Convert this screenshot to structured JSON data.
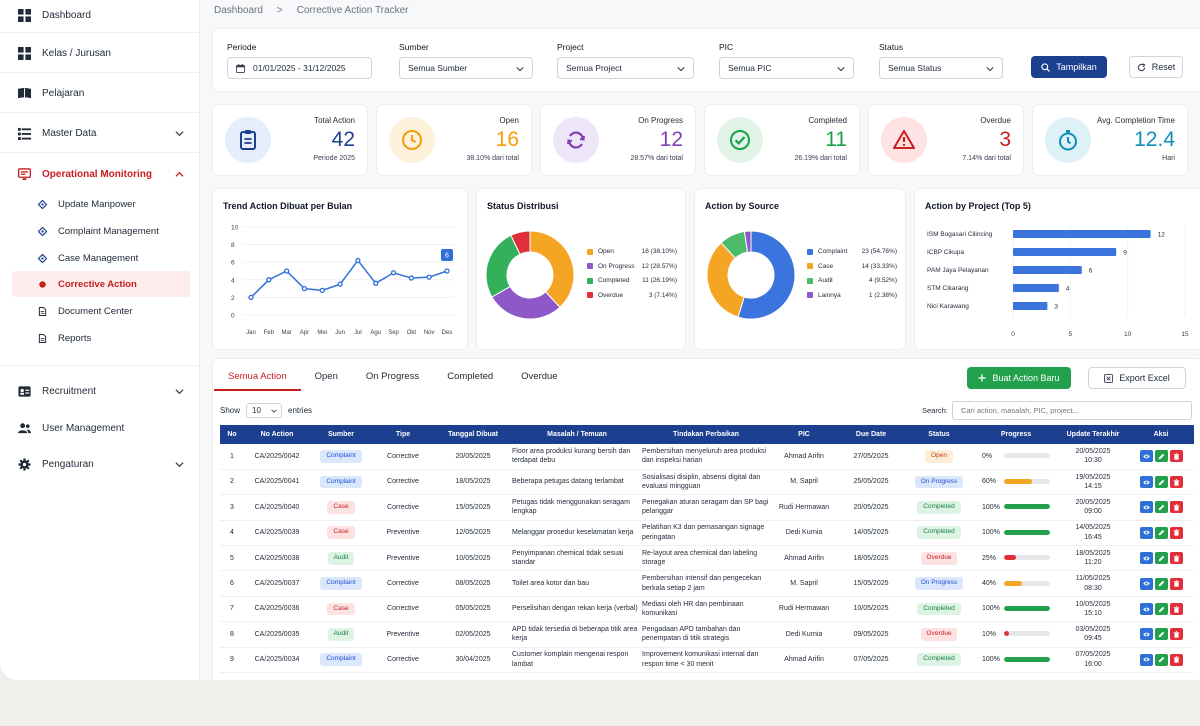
{
  "sidebar": {
    "items": [
      {
        "label": "Dashboard",
        "icon": "grid-icon"
      },
      {
        "label": "Kelas / Jurusan",
        "icon": "grid-icon"
      },
      {
        "label": "Pelajaran",
        "icon": "book-icon"
      },
      {
        "label": "Master Data",
        "icon": "list-icon"
      },
      {
        "label": "Operational Monitoring",
        "icon": "monitor-icon"
      },
      {
        "label": "Recruitment",
        "icon": "id-card-icon"
      },
      {
        "label": "User Management",
        "icon": "users-icon"
      },
      {
        "label": "Pengaturan",
        "icon": "gear-icon"
      }
    ],
    "sub_items": [
      {
        "label": "Update Manpower",
        "icon": "diamond-icon"
      },
      {
        "label": "Complaint Management",
        "icon": "diamond-icon"
      },
      {
        "label": "Case Management",
        "icon": "diamond-icon"
      },
      {
        "label": "Corrective Action",
        "icon": "dot-icon"
      },
      {
        "label": "Document Center",
        "icon": "file-icon"
      },
      {
        "label": "Reports",
        "icon": "file-icon"
      }
    ]
  },
  "breadcrumb": {
    "home": "Dashboard",
    "sep": ">",
    "current": "Corrective Action Tracker"
  },
  "filters": {
    "periode_label": "Periode",
    "periode_value": "01/01/2025 - 31/12/2025",
    "sumber_label": "Sumber",
    "sumber_value": "Semua Sumber",
    "project_label": "Project",
    "project_value": "Semua Project",
    "pic_label": "PIC",
    "pic_value": "Semua PIC",
    "status_label": "Status",
    "status_value": "Semua Status",
    "tampilkan": "Tampilkan",
    "reset": "Reset"
  },
  "stats": [
    {
      "title": "Total Action",
      "value": "42",
      "sub": "Periode 2025",
      "color": "#1d3f8f",
      "bg": "#e6eefb",
      "icon": "clipboard-icon"
    },
    {
      "title": "Open",
      "value": "16",
      "sub": "38.10% dari total",
      "color": "#f59e0b",
      "bg": "#fdf1dc",
      "icon": "clock-icon"
    },
    {
      "title": "On Progress",
      "value": "12",
      "sub": "28.57% dari total",
      "color": "#7e3fb3",
      "bg": "#efe5f8",
      "icon": "refresh-icon"
    },
    {
      "title": "Completed",
      "value": "11",
      "sub": "26.19% dari total",
      "color": "#16a34a",
      "bg": "#e1f4e7",
      "icon": "check-circle-icon"
    },
    {
      "title": "Overdue",
      "value": "3",
      "sub": "7.14% dari total",
      "color": "#c81e1e",
      "bg": "#fde3e3",
      "icon": "warning-icon"
    },
    {
      "title": "Avg. Completion Time",
      "value": "12.4",
      "sub": "Hari",
      "color": "#0e8fb8",
      "bg": "#ddf1f7",
      "icon": "stopwatch-icon"
    }
  ],
  "chart_data": [
    {
      "type": "line",
      "title": "Trend Action Dibuat per Bulan",
      "categories": [
        "Jan",
        "Feb",
        "Mar",
        "Apr",
        "Mei",
        "Jun",
        "Jul",
        "Agu",
        "Sep",
        "Okt",
        "Nov",
        "Des"
      ],
      "values": [
        2,
        4,
        5,
        3,
        2.8,
        3.5,
        6.2,
        3.6,
        4.8,
        4.2,
        4.3,
        5
      ],
      "ylim": [
        0,
        10
      ],
      "yticks": [
        "0",
        "2",
        "4",
        "6",
        "8",
        "10"
      ],
      "annotation": "6",
      "color": "#2f6fd6"
    },
    {
      "type": "pie",
      "title": "Status Distribusi",
      "labels": [
        "Open",
        "On Progress",
        "Completed",
        "Overdue"
      ],
      "values": [
        16,
        12,
        11,
        3
      ],
      "display": [
        "16 (38.10%)",
        "12 (28.57%)",
        "11 (26.19%)",
        "3 (7.14%)"
      ],
      "colors": [
        "#f5a524",
        "#8e58c9",
        "#34b05a",
        "#e02f3b"
      ]
    },
    {
      "type": "pie",
      "title": "Action by Source",
      "labels": [
        "Complaint",
        "Case",
        "Audit",
        "Lainnya"
      ],
      "values": [
        23,
        14,
        4,
        1
      ],
      "display": [
        "23 (54.76%)",
        "14 (33.33%)",
        "4 (9.52%)",
        "1 (2.38%)"
      ],
      "colors": [
        "#3b74dc",
        "#f5a524",
        "#4dbb6a",
        "#8e58c9"
      ]
    },
    {
      "type": "bar",
      "title": "Action by Project (Top 5)",
      "categories": [
        "ISM Bogasari Cilincing",
        "ICBP Cikupa",
        "PAM Jaya Pelayanan",
        "STM Cikarang",
        "Nici Karawang"
      ],
      "values": [
        12,
        9,
        6,
        4,
        3
      ],
      "xticks": [
        "0",
        "5",
        "10",
        "15"
      ],
      "xlim": [
        0,
        15
      ],
      "color": "#3b74dc"
    }
  ],
  "tabs": [
    {
      "label": "Semua Action"
    },
    {
      "label": "Open"
    },
    {
      "label": "On Progress"
    },
    {
      "label": "Completed"
    },
    {
      "label": "Overdue"
    }
  ],
  "actions": {
    "new": "Buat Action Baru",
    "export": "Export Excel"
  },
  "table_controls": {
    "show": "Show",
    "entries_value": "10",
    "entries": "entries",
    "search_label": "Search:",
    "search_placeholder": "Cari action, masalah, PIC, project..."
  },
  "table": {
    "headers": [
      "No",
      "No Action",
      "Sumber",
      "Tipe",
      "Tanggal Dibuat",
      "Masalah / Temuan",
      "Tindakan Perbaikan",
      "PIC",
      "Due Date",
      "Status",
      "Progress",
      "Update Terakhir",
      "Aksi"
    ],
    "rows": [
      {
        "no": "1",
        "code": "CA/2025/0042",
        "sumber": "Complaint",
        "tipe": "Corrective",
        "tanggal": "20/05/2025",
        "masalah": "Floor area produksi kurang bersih dan terdapat debu",
        "tindakan": "Pembersihan menyeluruh area produksi dan inspeksi harian",
        "pic": "Ahmad Arifin",
        "due": "27/05/2025",
        "status": "Open",
        "progress": "0%",
        "progress_value": 0,
        "update_date": "20/05/2025",
        "update_time": "10:30"
      },
      {
        "no": "2",
        "code": "CA/2025/0041",
        "sumber": "Complaint",
        "tipe": "Corrective",
        "tanggal": "18/05/2025",
        "masalah": "Beberapa petugas datang terlambat",
        "tindakan": "Sosialisasi disiplin, absensi digital dan evaluasi mingguan",
        "pic": "M. Sapril",
        "due": "25/05/2025",
        "status": "On Progress",
        "progress": "60%",
        "progress_value": 60,
        "update_date": "19/05/2025",
        "update_time": "14:15"
      },
      {
        "no": "3",
        "code": "CA/2025/0040",
        "sumber": "Case",
        "tipe": "Corrective",
        "tanggal": "15/05/2025",
        "masalah": "Petugas tidak menggunakan seragam lengkap",
        "tindakan": "Penegakan aturan seragam dan SP bagi pelanggar",
        "pic": "Rudi Hermawan",
        "due": "20/05/2025",
        "status": "Completed",
        "progress": "100%",
        "progress_value": 100,
        "update_date": "20/05/2025",
        "update_time": "09:00"
      },
      {
        "no": "4",
        "code": "CA/2025/0039",
        "sumber": "Case",
        "tipe": "Preventive",
        "tanggal": "12/05/2025",
        "masalah": "Melanggar prosedur keselamatan kerja",
        "tindakan": "Pelatihan K3 dan pemasangan signage peringatan",
        "pic": "Dedi Kurnia",
        "due": "14/05/2025",
        "status": "Completed",
        "progress": "100%",
        "progress_value": 100,
        "update_date": "14/05/2025",
        "update_time": "16:45"
      },
      {
        "no": "5",
        "code": "CA/2025/0038",
        "sumber": "Audit",
        "tipe": "Preventive",
        "tanggal": "10/05/2025",
        "masalah": "Penyimpanan chemical tidak sesuai standar",
        "tindakan": "Re-layout area chemical dan labeling storage",
        "pic": "Ahmad Arifin",
        "due": "18/05/2025",
        "status": "Overdue",
        "progress": "25%",
        "progress_value": 25,
        "update_date": "18/05/2025",
        "update_time": "11:20"
      },
      {
        "no": "6",
        "code": "CA/2025/0037",
        "sumber": "Complaint",
        "tipe": "Corrective",
        "tanggal": "08/05/2025",
        "masalah": "Toilet area kotor dan bau",
        "tindakan": "Pembersihan intensif dan pengecekan berkala setiap 2 jam",
        "pic": "M. Sapril",
        "due": "15/05/2025",
        "status": "On Progress",
        "progress": "40%",
        "progress_value": 40,
        "update_date": "11/05/2025",
        "update_time": "08:30"
      },
      {
        "no": "7",
        "code": "CA/2025/0036",
        "sumber": "Case",
        "tipe": "Corrective",
        "tanggal": "05/05/2025",
        "masalah": "Perselisihan dengan rekan kerja (verbal)",
        "tindakan": "Mediasi oleh HR dan pembinaan komunikasi",
        "pic": "Rudi Hermawan",
        "due": "10/05/2025",
        "status": "Completed",
        "progress": "100%",
        "progress_value": 100,
        "update_date": "10/05/2025",
        "update_time": "15:10"
      },
      {
        "no": "8",
        "code": "CA/2025/0035",
        "sumber": "Audit",
        "tipe": "Preventive",
        "tanggal": "02/05/2025",
        "masalah": "APD tidak tersedia di beberapa titik area kerja",
        "tindakan": "Pengadaan APD tambahan dan penempatan di titik strategis",
        "pic": "Dedi Kurnia",
        "due": "09/05/2025",
        "status": "Overdue",
        "progress": "10%",
        "progress_value": 10,
        "update_date": "03/05/2025",
        "update_time": "09:45"
      },
      {
        "no": "9",
        "code": "CA/2025/0034",
        "sumber": "Complaint",
        "tipe": "Corrective",
        "tanggal": "30/04/2025",
        "masalah": "Customer komplain mengenai respon lambat",
        "tindakan": "Improvement komunikasi internal dan respon time < 30 menit",
        "pic": "Ahmad Arifin",
        "due": "07/05/2025",
        "status": "Completed",
        "progress": "100%",
        "progress_value": 100,
        "update_date": "07/05/2025",
        "update_time": "16:00"
      }
    ]
  }
}
